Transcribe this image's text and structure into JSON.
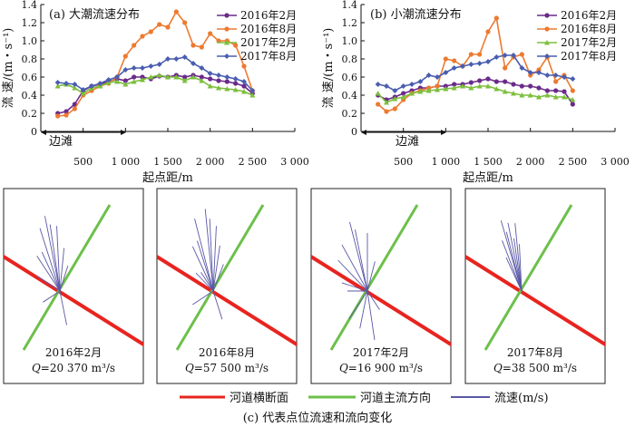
{
  "chart_data": [
    {
      "type": "line",
      "title": "(a) 大潮流速分布",
      "xlabel": "起点距/m",
      "ylabel": "流 速/(m・s⁻¹)",
      "xlim": [
        0,
        3000
      ],
      "ylim": [
        0,
        1.4
      ],
      "xticks": [
        "500",
        "1 000",
        "1 500",
        "2 000",
        "2 500",
        "3 000"
      ],
      "yticks": [
        "0",
        "0.2",
        "0.4",
        "0.6",
        "0.8",
        "1.0",
        "1.2",
        "1.4"
      ],
      "annotation": "边滩",
      "legend_position": "top-right",
      "series": [
        {
          "name": "2016年2月",
          "color": "#6a2a8a",
          "marker": "circle",
          "x": [
            200,
            300,
            400,
            500,
            600,
            700,
            800,
            900,
            1000,
            1100,
            1200,
            1300,
            1400,
            1500,
            1600,
            1700,
            1800,
            1900,
            2000,
            2100,
            2200,
            2300,
            2400,
            2500
          ],
          "y": [
            0.2,
            0.22,
            0.3,
            0.45,
            0.5,
            0.52,
            0.55,
            0.58,
            0.56,
            0.6,
            0.6,
            0.58,
            0.61,
            0.6,
            0.62,
            0.6,
            0.62,
            0.6,
            0.58,
            0.56,
            0.55,
            0.53,
            0.5,
            0.42
          ]
        },
        {
          "name": "2016年8月",
          "color": "#ec7a30",
          "marker": "circle",
          "x": [
            200,
            300,
            400,
            500,
            600,
            700,
            800,
            900,
            1000,
            1100,
            1200,
            1300,
            1400,
            1500,
            1600,
            1700,
            1800,
            1900,
            2000,
            2100,
            2200,
            2300,
            2400,
            2500
          ],
          "y": [
            0.17,
            0.18,
            0.25,
            0.4,
            0.45,
            0.5,
            0.53,
            0.6,
            0.83,
            0.95,
            1.05,
            1.1,
            1.18,
            1.15,
            1.32,
            1.2,
            0.95,
            0.93,
            1.08,
            1.0,
            1.0,
            0.95,
            0.72,
            0.45
          ]
        },
        {
          "name": "2017年2月",
          "color": "#7cbf3c",
          "marker": "triangle",
          "x": [
            200,
            300,
            400,
            500,
            600,
            700,
            800,
            900,
            1000,
            1100,
            1200,
            1300,
            1400,
            1500,
            1600,
            1700,
            1800,
            1900,
            2000,
            2100,
            2200,
            2300,
            2400,
            2500
          ],
          "y": [
            0.5,
            0.52,
            0.48,
            0.42,
            0.48,
            0.5,
            0.54,
            0.55,
            0.52,
            0.55,
            0.57,
            0.6,
            0.62,
            0.6,
            0.6,
            0.56,
            0.6,
            0.56,
            0.5,
            0.48,
            0.47,
            0.46,
            0.44,
            0.4
          ]
        },
        {
          "name": "2017年8月",
          "color": "#4a5db0",
          "marker": "diamond",
          "x": [
            200,
            300,
            400,
            500,
            600,
            700,
            800,
            900,
            1000,
            1100,
            1200,
            1300,
            1400,
            1500,
            1600,
            1700,
            1800,
            1900,
            2000,
            2100,
            2200,
            2300,
            2400,
            2500
          ],
          "y": [
            0.54,
            0.53,
            0.52,
            0.46,
            0.5,
            0.53,
            0.57,
            0.6,
            0.68,
            0.7,
            0.7,
            0.72,
            0.74,
            0.8,
            0.8,
            0.82,
            0.75,
            0.7,
            0.64,
            0.62,
            0.6,
            0.58,
            0.55,
            0.45
          ]
        }
      ]
    },
    {
      "type": "line",
      "title": "(b) 小潮流速分布",
      "xlabel": "起点距/m",
      "ylabel": "流 速/(m・s⁻¹)",
      "xlim": [
        0,
        3000
      ],
      "ylim": [
        0,
        1.4
      ],
      "xticks": [
        "500",
        "1 000",
        "1 500",
        "2 000",
        "2 500",
        "3 000"
      ],
      "yticks": [
        "0",
        "0.2",
        "0.4",
        "0.6",
        "0.8",
        "1.0",
        "1.2",
        "1.4"
      ],
      "annotation": "边滩",
      "legend_position": "top-right",
      "series": [
        {
          "name": "2016年2月",
          "color": "#6a2a8a",
          "marker": "circle",
          "x": [
            200,
            300,
            400,
            500,
            600,
            700,
            800,
            900,
            1000,
            1100,
            1200,
            1300,
            1400,
            1500,
            1600,
            1700,
            1800,
            1900,
            2000,
            2100,
            2200,
            2300,
            2400,
            2500
          ],
          "y": [
            0.4,
            0.35,
            0.38,
            0.42,
            0.45,
            0.48,
            0.48,
            0.5,
            0.5,
            0.52,
            0.52,
            0.54,
            0.56,
            0.58,
            0.55,
            0.55,
            0.52,
            0.5,
            0.5,
            0.48,
            0.45,
            0.45,
            0.44,
            0.3
          ]
        },
        {
          "name": "2016年8月",
          "color": "#ec7a30",
          "marker": "circle",
          "x": [
            200,
            300,
            400,
            500,
            600,
            700,
            800,
            900,
            1000,
            1100,
            1200,
            1300,
            1400,
            1500,
            1600,
            1700,
            1800,
            1900,
            2000,
            2100,
            2200,
            2300,
            2400,
            2500
          ],
          "y": [
            0.3,
            0.22,
            0.25,
            0.35,
            0.42,
            0.45,
            0.48,
            0.5,
            0.8,
            0.78,
            0.72,
            0.85,
            0.85,
            1.1,
            1.25,
            0.7,
            0.82,
            0.85,
            0.62,
            0.68,
            0.82,
            0.55,
            0.62,
            0.45
          ]
        },
        {
          "name": "2017年2月",
          "color": "#7cbf3c",
          "marker": "triangle",
          "x": [
            200,
            300,
            400,
            500,
            600,
            700,
            800,
            900,
            1000,
            1100,
            1200,
            1300,
            1400,
            1500,
            1600,
            1700,
            1800,
            1900,
            2000,
            2100,
            2200,
            2300,
            2400,
            2500
          ],
          "y": [
            0.42,
            0.32,
            0.36,
            0.38,
            0.42,
            0.44,
            0.45,
            0.46,
            0.47,
            0.48,
            0.5,
            0.48,
            0.5,
            0.5,
            0.47,
            0.44,
            0.42,
            0.4,
            0.4,
            0.38,
            0.4,
            0.38,
            0.38,
            0.35
          ]
        },
        {
          "name": "2017年8月",
          "color": "#4a5db0",
          "marker": "diamond",
          "x": [
            200,
            300,
            400,
            500,
            600,
            700,
            800,
            900,
            1000,
            1100,
            1200,
            1300,
            1400,
            1500,
            1600,
            1700,
            1800,
            1900,
            2000,
            2100,
            2200,
            2300,
            2400,
            2500
          ],
          "y": [
            0.52,
            0.5,
            0.45,
            0.5,
            0.52,
            0.55,
            0.62,
            0.6,
            0.65,
            0.7,
            0.72,
            0.74,
            0.75,
            0.77,
            0.82,
            0.84,
            0.84,
            0.7,
            0.65,
            0.65,
            0.62,
            0.62,
            0.6,
            0.58
          ]
        }
      ]
    }
  ],
  "vector_panels": {
    "caption": "(c) 代表点位流速和流向变化",
    "legend": [
      {
        "label": "河道横断面",
        "color": "#e8241f"
      },
      {
        "label": "河道主流方向",
        "color": "#6cc04a"
      },
      {
        "label": "流速(m/s)",
        "color": "#5a58a6"
      }
    ],
    "panels": [
      {
        "date": "2016年2月",
        "q_label": "Q",
        "q_value": "=20 370 m³/s",
        "rays": [
          [
            110,
            2.2
          ],
          [
            95,
            1.8
          ],
          [
            140,
            1.5
          ],
          [
            120,
            2.0
          ],
          [
            160,
            1.2
          ],
          [
            200,
            0.9
          ],
          [
            -70,
            1.0
          ],
          [
            60,
            0.8
          ],
          [
            105,
            1.9
          ],
          [
            130,
            1.4
          ],
          [
            80,
            1.2
          ]
        ]
      },
      {
        "date": "2016年8月",
        "q_label": "Q",
        "q_value": "=57 500 m³/s",
        "rays": [
          [
            100,
            2.3
          ],
          [
            85,
            1.8
          ],
          [
            130,
            1.6
          ],
          [
            115,
            2.2
          ],
          [
            150,
            1.0
          ],
          [
            200,
            1.1
          ],
          [
            -60,
            0.9
          ],
          [
            55,
            0.9
          ],
          [
            95,
            2.0
          ],
          [
            120,
            1.6
          ],
          [
            75,
            1.3
          ],
          [
            140,
            0.8
          ]
        ]
      },
      {
        "date": "2017年2月",
        "q_label": "Q",
        "q_value": "=16 900 m³/s",
        "rays": [
          [
            115,
            2.1
          ],
          [
            90,
            1.6
          ],
          [
            150,
            1.7
          ],
          [
            135,
            1.8
          ],
          [
            170,
            1.3
          ],
          [
            220,
            1.2
          ],
          [
            -75,
            1.4
          ],
          [
            65,
            0.9
          ],
          [
            110,
            1.8
          ],
          [
            180,
            1.0
          ],
          [
            250,
            1.1
          ],
          [
            -40,
            0.8
          ]
        ]
      },
      {
        "date": "2017年8月",
        "q_label": "Q",
        "q_value": "=38 500 m³/s",
        "rays": [
          [
            110,
            2.0
          ],
          [
            100,
            1.9
          ],
          [
            125,
            1.7
          ],
          [
            118,
            2.2
          ],
          [
            105,
            1.5
          ],
          [
            130,
            1.2
          ],
          [
            95,
            1.3
          ],
          [
            115,
            1.8
          ]
        ]
      }
    ]
  }
}
